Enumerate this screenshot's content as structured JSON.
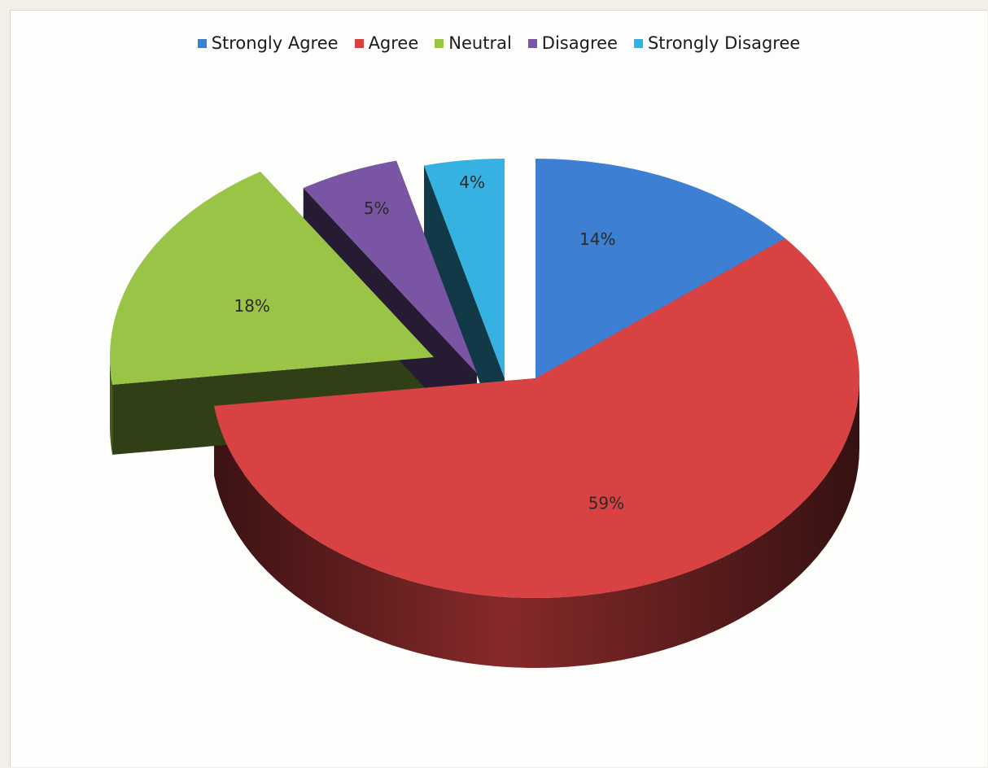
{
  "chart_data": {
    "type": "pie",
    "categories": [
      "Strongly Agree",
      "Agree",
      "Neutral",
      "Disagree",
      "Strongly Disagree"
    ],
    "values": [
      14,
      59,
      18,
      5,
      4
    ],
    "labels": [
      "14%",
      "59%",
      "18%",
      "5%",
      "4%"
    ],
    "colors": [
      "#3d7fd3",
      "#d84243",
      "#9ac445",
      "#7a55a4",
      "#35b1e2"
    ],
    "title": "",
    "legend_position": "top",
    "style": "3d-exploded"
  }
}
